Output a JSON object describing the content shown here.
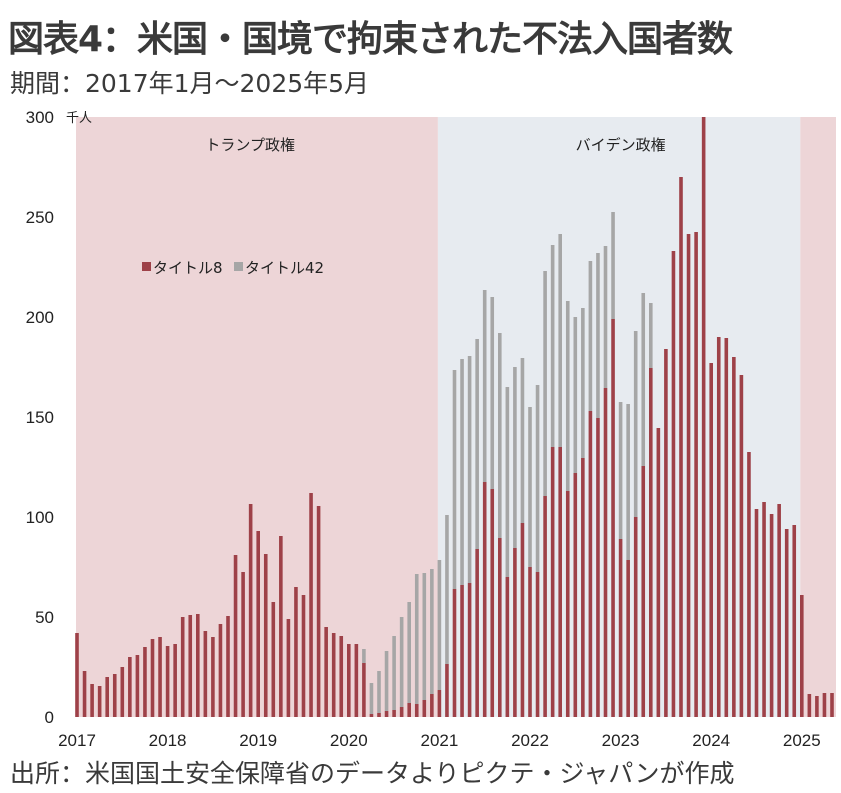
{
  "header": {
    "title": "図表4：米国・国境で拘束された不法入国者数",
    "subtitle": "期間：2017年1月～2025年5月"
  },
  "footer": {
    "source": "出所：米国国土安全保障省のデータよりピクテ・ジャパンが作成"
  },
  "colors": {
    "title8": "#9E4148",
    "title42": "#A6A6A6",
    "trump_bg": "#EDD5D7",
    "biden_bg": "#E7EBF0"
  },
  "chart_data": {
    "type": "bar",
    "stacked": true,
    "title": "図表4：米国・国境で拘束された不法入国者数",
    "ylabel_unit": "千人",
    "ylim": [
      0,
      300
    ],
    "yticks": [
      "0",
      "50",
      "100",
      "150",
      "200",
      "250",
      "300"
    ],
    "ytick_values": [
      0,
      50,
      100,
      150,
      200,
      250,
      300
    ],
    "xtick_labels": [
      "2017",
      "2018",
      "2019",
      "2020",
      "2021",
      "2022",
      "2023",
      "2024",
      "2025"
    ],
    "xtick_month_index": [
      0,
      12,
      24,
      36,
      48,
      60,
      72,
      84,
      96
    ],
    "x_start": "2017-01",
    "x_end": "2025-05",
    "legend_position": "upper-left",
    "periods": [
      {
        "label": "トランプ政権",
        "start_index": 0,
        "end_index": 48
      },
      {
        "label": "バイデン政権",
        "start_index": 48,
        "end_index": 96
      },
      {
        "label": "",
        "start_index": 96,
        "end_index": 101
      }
    ],
    "series": [
      {
        "name": "タイトル8",
        "values": [
          42,
          23,
          16.5,
          15.5,
          20,
          21.5,
          25,
          30,
          31,
          35,
          39,
          40,
          35.5,
          36.5,
          50,
          51,
          51.5,
          43,
          40,
          46.5,
          50.5,
          81,
          72.5,
          106.5,
          93,
          81.5,
          57.5,
          90.5,
          49,
          65,
          61,
          112,
          105.5,
          45,
          42,
          40.5,
          36.5,
          36.5,
          27,
          1.5,
          2,
          3,
          3.5,
          5,
          7,
          6.5,
          8.5,
          11.5,
          13.5,
          26.5,
          64,
          66,
          67,
          84,
          117.5,
          114,
          89.5,
          70,
          84.5,
          97,
          75,
          72.5,
          110.5,
          135,
          135,
          113,
          122,
          129.5,
          153,
          149.5,
          164.5,
          199,
          89,
          78.5,
          100,
          125.5,
          174.5,
          144.5,
          184,
          233,
          270,
          241.5,
          242.5,
          301,
          177,
          190,
          189.5,
          180,
          171,
          132.5,
          104,
          107.5,
          101.5,
          106.5,
          94,
          96,
          61,
          11.5,
          10.5,
          12,
          12
        ]
      },
      {
        "name": "タイトル42",
        "values": [
          0,
          0,
          0,
          0,
          0,
          0,
          0,
          0,
          0,
          0,
          0,
          0,
          0,
          0,
          0,
          0,
          0,
          0,
          0,
          0,
          0,
          0,
          0,
          0,
          0,
          0,
          0,
          0,
          0,
          0,
          0,
          0,
          0,
          0,
          0,
          0,
          0,
          0,
          7,
          15.5,
          21,
          30,
          37,
          45,
          50.5,
          65,
          63.5,
          62.5,
          65,
          74.5,
          109.5,
          113,
          113.5,
          105,
          96,
          96,
          102.5,
          95,
          90.5,
          82.5,
          80,
          93.5,
          112.5,
          101,
          106.5,
          95,
          78,
          75,
          75,
          82.5,
          71,
          53.5,
          68.5,
          78,
          93,
          86.5,
          32.5,
          0,
          0,
          0,
          0,
          0,
          0,
          0,
          0,
          0,
          0,
          0,
          0,
          0,
          0,
          0,
          0,
          0,
          0,
          0,
          0,
          0,
          0,
          0,
          0
        ]
      }
    ]
  }
}
